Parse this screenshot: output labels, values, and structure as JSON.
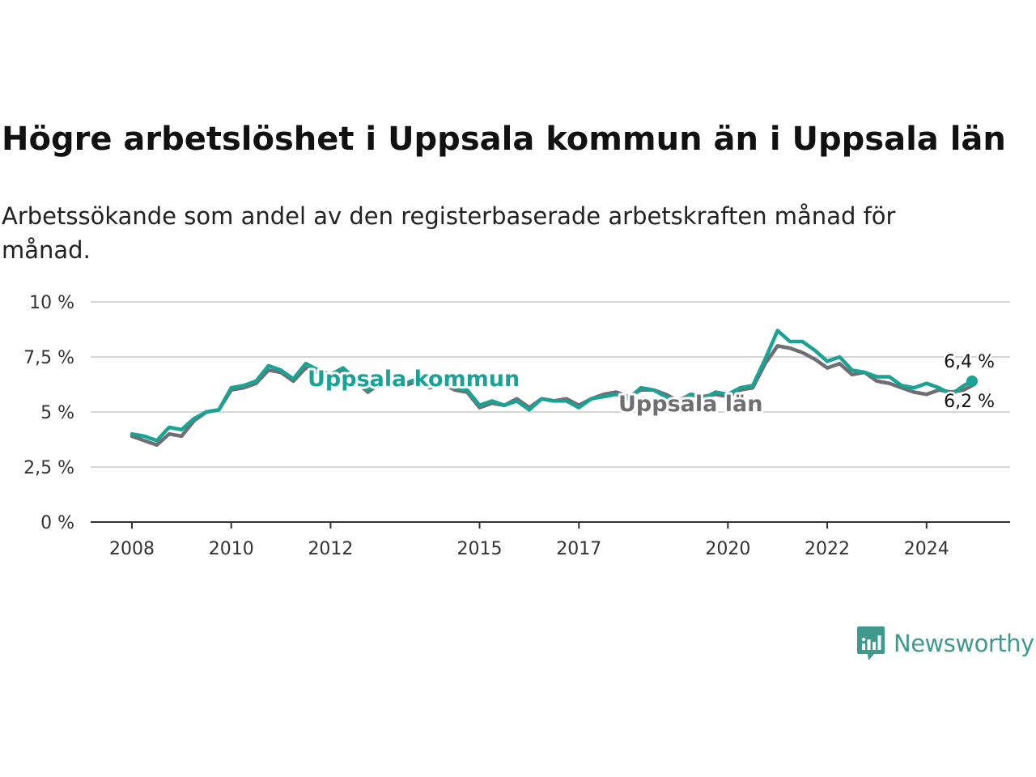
{
  "title": "Högre arbetslöshet i Uppsala kommun än i Uppsala län",
  "subtitle": "Arbetssökande som andel av den registerbaserade arbetskraften månad för månad.",
  "brand": {
    "name": "Newsworthy",
    "icon": "newsworthy-logo-icon",
    "color": "#3f9a8e"
  },
  "chart_data": {
    "type": "line",
    "title": "Högre arbetslöshet i Uppsala kommun än i Uppsala län",
    "subtitle": "Arbetssökande som andel av den registerbaserade arbetskraften månad för månad.",
    "xlabel": "",
    "ylabel": "",
    "x_range": [
      "2008-01",
      "2024-12"
    ],
    "xticks": [
      {
        "year": 2008,
        "label": "2008"
      },
      {
        "year": 2010,
        "label": "2010"
      },
      {
        "year": 2012,
        "label": "2012"
      },
      {
        "year": 2015,
        "label": "2015"
      },
      {
        "year": 2017,
        "label": "2017"
      },
      {
        "year": 2020,
        "label": "2020"
      },
      {
        "year": 2022,
        "label": "2022"
      },
      {
        "year": 2024,
        "label": "2024"
      }
    ],
    "ylim": [
      0,
      10
    ],
    "yticks": [
      {
        "value": 0,
        "label": "0 %"
      },
      {
        "value": 2.5,
        "label": "2,5 %"
      },
      {
        "value": 5,
        "label": "5 %"
      },
      {
        "value": 7.5,
        "label": "7,5 %"
      },
      {
        "value": 10,
        "label": "10 %"
      }
    ],
    "grid": "horizontal",
    "legend": "direct labels on lines",
    "series": [
      {
        "name": "Uppsala län",
        "color": "#6e6e73",
        "end_label": "6,2 %",
        "points": [
          [
            "2008-01",
            3.9
          ],
          [
            "2008-04",
            3.7
          ],
          [
            "2008-07",
            3.5
          ],
          [
            "2008-10",
            4.0
          ],
          [
            "2009-01",
            3.9
          ],
          [
            "2009-04",
            4.6
          ],
          [
            "2009-07",
            5.0
          ],
          [
            "2009-10",
            5.1
          ],
          [
            "2010-01",
            6.0
          ],
          [
            "2010-04",
            6.1
          ],
          [
            "2010-07",
            6.3
          ],
          [
            "2010-10",
            6.9
          ],
          [
            "2011-01",
            6.8
          ],
          [
            "2011-04",
            6.4
          ],
          [
            "2011-07",
            7.0
          ],
          [
            "2011-10",
            6.8
          ],
          [
            "2012-01",
            6.6
          ],
          [
            "2012-04",
            6.9
          ],
          [
            "2012-07",
            6.4
          ],
          [
            "2012-10",
            5.9
          ],
          [
            "2013-01",
            6.3
          ],
          [
            "2013-04",
            6.4
          ],
          [
            "2013-07",
            6.2
          ],
          [
            "2013-10",
            6.4
          ],
          [
            "2014-01",
            6.1
          ],
          [
            "2014-04",
            6.3
          ],
          [
            "2014-07",
            6.0
          ],
          [
            "2014-10",
            5.9
          ],
          [
            "2015-01",
            5.2
          ],
          [
            "2015-04",
            5.4
          ],
          [
            "2015-07",
            5.3
          ],
          [
            "2015-10",
            5.6
          ],
          [
            "2016-01",
            5.2
          ],
          [
            "2016-04",
            5.6
          ],
          [
            "2016-07",
            5.5
          ],
          [
            "2016-10",
            5.6
          ],
          [
            "2017-01",
            5.3
          ],
          [
            "2017-04",
            5.6
          ],
          [
            "2017-07",
            5.8
          ],
          [
            "2017-10",
            5.9
          ],
          [
            "2018-01",
            5.7
          ],
          [
            "2018-04",
            6.0
          ],
          [
            "2018-07",
            6.0
          ],
          [
            "2018-10",
            5.8
          ],
          [
            "2019-01",
            5.5
          ],
          [
            "2019-04",
            5.8
          ],
          [
            "2019-07",
            5.7
          ],
          [
            "2019-10",
            5.8
          ],
          [
            "2020-01",
            5.7
          ],
          [
            "2020-04",
            6.0
          ],
          [
            "2020-07",
            6.1
          ],
          [
            "2020-10",
            7.2
          ],
          [
            "2021-01",
            8.0
          ],
          [
            "2021-04",
            7.9
          ],
          [
            "2021-07",
            7.7
          ],
          [
            "2021-10",
            7.4
          ],
          [
            "2022-01",
            7.0
          ],
          [
            "2022-04",
            7.2
          ],
          [
            "2022-07",
            6.7
          ],
          [
            "2022-10",
            6.8
          ],
          [
            "2023-01",
            6.4
          ],
          [
            "2023-04",
            6.3
          ],
          [
            "2023-07",
            6.1
          ],
          [
            "2023-10",
            5.9
          ],
          [
            "2024-01",
            5.8
          ],
          [
            "2024-04",
            6.0
          ],
          [
            "2024-07",
            5.9
          ],
          [
            "2024-10",
            6.0
          ],
          [
            "2024-12",
            6.2
          ]
        ]
      },
      {
        "name": "Uppsala kommun",
        "color": "#19a394",
        "end_label": "6,4 %",
        "points": [
          [
            "2008-01",
            4.0
          ],
          [
            "2008-04",
            3.9
          ],
          [
            "2008-07",
            3.7
          ],
          [
            "2008-10",
            4.3
          ],
          [
            "2009-01",
            4.2
          ],
          [
            "2009-04",
            4.7
          ],
          [
            "2009-07",
            5.0
          ],
          [
            "2009-10",
            5.1
          ],
          [
            "2010-01",
            6.1
          ],
          [
            "2010-04",
            6.2
          ],
          [
            "2010-07",
            6.4
          ],
          [
            "2010-10",
            7.1
          ],
          [
            "2011-01",
            6.9
          ],
          [
            "2011-04",
            6.5
          ],
          [
            "2011-07",
            7.2
          ],
          [
            "2011-10",
            6.9
          ],
          [
            "2012-01",
            6.7
          ],
          [
            "2012-04",
            7.0
          ],
          [
            "2012-07",
            6.5
          ],
          [
            "2012-10",
            6.0
          ],
          [
            "2013-01",
            6.4
          ],
          [
            "2013-04",
            6.5
          ],
          [
            "2013-07",
            6.3
          ],
          [
            "2013-10",
            6.5
          ],
          [
            "2014-01",
            6.2
          ],
          [
            "2014-04",
            6.4
          ],
          [
            "2014-07",
            6.1
          ],
          [
            "2014-10",
            6.0
          ],
          [
            "2015-01",
            5.3
          ],
          [
            "2015-04",
            5.5
          ],
          [
            "2015-07",
            5.3
          ],
          [
            "2015-10",
            5.5
          ],
          [
            "2016-01",
            5.1
          ],
          [
            "2016-04",
            5.6
          ],
          [
            "2016-07",
            5.5
          ],
          [
            "2016-10",
            5.5
          ],
          [
            "2017-01",
            5.2
          ],
          [
            "2017-04",
            5.6
          ],
          [
            "2017-07",
            5.7
          ],
          [
            "2017-10",
            5.8
          ],
          [
            "2018-01",
            5.6
          ],
          [
            "2018-04",
            6.1
          ],
          [
            "2018-07",
            6.0
          ],
          [
            "2018-10",
            5.7
          ],
          [
            "2019-01",
            5.4
          ],
          [
            "2019-04",
            5.8
          ],
          [
            "2019-07",
            5.6
          ],
          [
            "2019-10",
            5.9
          ],
          [
            "2020-01",
            5.8
          ],
          [
            "2020-04",
            6.1
          ],
          [
            "2020-07",
            6.2
          ],
          [
            "2020-10",
            7.4
          ],
          [
            "2021-01",
            8.7
          ],
          [
            "2021-04",
            8.2
          ],
          [
            "2021-07",
            8.2
          ],
          [
            "2021-10",
            7.8
          ],
          [
            "2022-01",
            7.3
          ],
          [
            "2022-04",
            7.5
          ],
          [
            "2022-07",
            6.9
          ],
          [
            "2022-10",
            6.8
          ],
          [
            "2023-01",
            6.6
          ],
          [
            "2023-04",
            6.6
          ],
          [
            "2023-07",
            6.2
          ],
          [
            "2023-10",
            6.1
          ],
          [
            "2024-01",
            6.3
          ],
          [
            "2024-04",
            6.1
          ],
          [
            "2024-07",
            5.8
          ],
          [
            "2024-10",
            6.2
          ],
          [
            "2024-12",
            6.4
          ]
        ]
      }
    ]
  }
}
